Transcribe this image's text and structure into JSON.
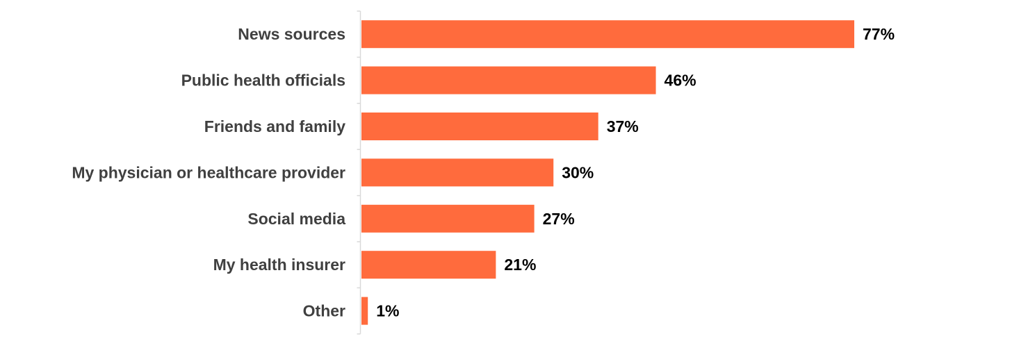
{
  "chart_data": {
    "type": "bar",
    "orientation": "horizontal",
    "categories": [
      "News sources",
      "Public health officials",
      "Friends and family",
      "My physician or healthcare provider",
      "Social media",
      "My health insurer",
      "Other"
    ],
    "values": [
      77,
      46,
      37,
      30,
      27,
      21,
      1
    ],
    "value_labels": [
      "77%",
      "46%",
      "37%",
      "30%",
      "27%",
      "21%",
      "1%"
    ],
    "unit": "%",
    "xlim": [
      0,
      100
    ],
    "title": "",
    "xlabel": "",
    "ylabel": "",
    "grid": false,
    "legend": false,
    "colors": {
      "bar": "#FF6B3D",
      "axis": "#D9D9D9",
      "category_text": "#404040",
      "value_text": "#000000"
    }
  }
}
